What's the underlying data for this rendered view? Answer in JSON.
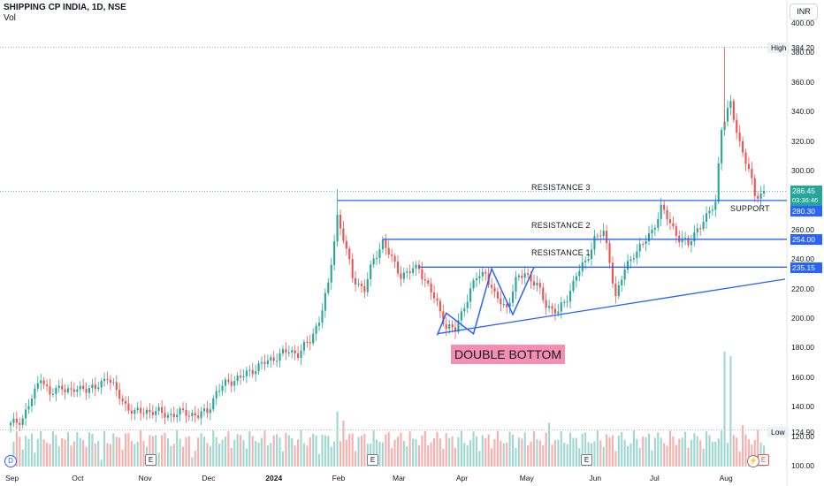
{
  "header": {
    "title": "SHIPPING CP INDIA, 1D, NSE",
    "sub": "Vol"
  },
  "currency": "INR",
  "annotations": {
    "r3": "RESISTANCE 3",
    "r2": "RESISTANCE 2",
    "r1": "RESISTANCE 1",
    "support": "SUPPORT",
    "pattern": "DOUBLE BOTTOM"
  },
  "price_labels": {
    "last": "286.45",
    "countdown": "03:36:46",
    "support_level": "280.30",
    "r2_level": "254.00",
    "r1_level": "235.15",
    "high_tag": "High",
    "high_value": "384.20",
    "low_tag": "Low",
    "low_value": "124.90"
  },
  "colors": {
    "up": "#26a69a",
    "down": "#ef5350",
    "line": "#2962ff",
    "vol_up": "#9fd8d1",
    "vol_down": "#f7b0ae",
    "tag_bg": "#eef0f5"
  },
  "events": {
    "d": "D",
    "e": "E",
    "bolt": "⚡"
  },
  "chart_data": {
    "type": "candlestick",
    "title": "SHIPPING CP INDIA, 1D, NSE",
    "ylim": [
      100,
      400
    ],
    "y_ticks": [
      "100.00",
      "120.00",
      "140.00",
      "160.00",
      "180.00",
      "200.00",
      "220.00",
      "240.00",
      "260.00",
      "280.00",
      "300.00",
      "320.00",
      "340.00",
      "360.00",
      "380.00",
      "400.00"
    ],
    "x_ticks": [
      {
        "label": "Sep",
        "x": 0
      },
      {
        "label": "Oct",
        "x": 22
      },
      {
        "label": "Nov",
        "x": 44
      },
      {
        "label": "Dec",
        "x": 65
      },
      {
        "label": "2024",
        "x": 86
      },
      {
        "label": "Feb",
        "x": 108
      },
      {
        "label": "Mar",
        "x": 128
      },
      {
        "label": "Apr",
        "x": 149
      },
      {
        "label": "May",
        "x": 170
      },
      {
        "label": "Jun",
        "x": 193
      },
      {
        "label": "Jul",
        "x": 213
      },
      {
        "label": "Aug",
        "x": 236
      }
    ],
    "close_path": [
      [
        0,
        128
      ],
      [
        4,
        133
      ],
      [
        8,
        150
      ],
      [
        10,
        162
      ],
      [
        13,
        148
      ],
      [
        17,
        155
      ],
      [
        20,
        150
      ],
      [
        24,
        154
      ],
      [
        28,
        152
      ],
      [
        32,
        162
      ],
      [
        35,
        150
      ],
      [
        38,
        142
      ],
      [
        41,
        136
      ],
      [
        45,
        138
      ],
      [
        50,
        136
      ],
      [
        54,
        135
      ],
      [
        58,
        137
      ],
      [
        62,
        134
      ],
      [
        65,
        138
      ],
      [
        68,
        150
      ],
      [
        72,
        158
      ],
      [
        76,
        160
      ],
      [
        80,
        166
      ],
      [
        84,
        170
      ],
      [
        88,
        175
      ],
      [
        92,
        178
      ],
      [
        95,
        177
      ],
      [
        99,
        185
      ],
      [
        102,
        200
      ],
      [
        105,
        222
      ],
      [
        108,
        270
      ],
      [
        110,
        255
      ],
      [
        113,
        228
      ],
      [
        117,
        220
      ],
      [
        120,
        240
      ],
      [
        123,
        253
      ],
      [
        126,
        240
      ],
      [
        129,
        230
      ],
      [
        132,
        232
      ],
      [
        135,
        235
      ],
      [
        138,
        222
      ],
      [
        141,
        210
      ],
      [
        144,
        195
      ],
      [
        147,
        192
      ],
      [
        150,
        210
      ],
      [
        154,
        228
      ],
      [
        157,
        232
      ],
      [
        160,
        215
      ],
      [
        164,
        208
      ],
      [
        167,
        225
      ],
      [
        170,
        232
      ],
      [
        174,
        222
      ],
      [
        177,
        210
      ],
      [
        181,
        204
      ],
      [
        184,
        215
      ],
      [
        187,
        230
      ],
      [
        190,
        238
      ],
      [
        193,
        255
      ],
      [
        196,
        258
      ],
      [
        198,
        240
      ],
      [
        200,
        215
      ],
      [
        203,
        233
      ],
      [
        206,
        245
      ],
      [
        209,
        250
      ],
      [
        212,
        260
      ],
      [
        215,
        275
      ],
      [
        218,
        265
      ],
      [
        221,
        255
      ],
      [
        224,
        250
      ],
      [
        227,
        262
      ],
      [
        230,
        268
      ],
      [
        233,
        280
      ],
      [
        235,
        330
      ],
      [
        238,
        345
      ],
      [
        241,
        320
      ],
      [
        244,
        300
      ],
      [
        246,
        284
      ],
      [
        249,
        286
      ]
    ],
    "drawn_levels": [
      {
        "name": "RESISTANCE 3 / SUPPORT",
        "value": 280.3
      },
      {
        "name": "RESISTANCE 2",
        "value": 254.0
      },
      {
        "name": "RESISTANCE 1",
        "value": 235.15
      }
    ],
    "trendline": [
      [
        141,
        190
      ],
      [
        256,
        227
      ]
    ],
    "pattern_line": [
      [
        141,
        189
      ],
      [
        144,
        204
      ],
      [
        153,
        190
      ],
      [
        159,
        234
      ],
      [
        166,
        203
      ],
      [
        173,
        235
      ]
    ],
    "volume_spikes": [
      [
        0,
        4
      ],
      [
        8,
        12
      ],
      [
        30,
        6
      ],
      [
        60,
        8
      ],
      [
        108,
        48
      ],
      [
        110,
        40
      ],
      [
        178,
        38
      ],
      [
        207,
        24
      ],
      [
        236,
        100
      ],
      [
        238,
        96
      ],
      [
        242,
        36
      ]
    ]
  }
}
